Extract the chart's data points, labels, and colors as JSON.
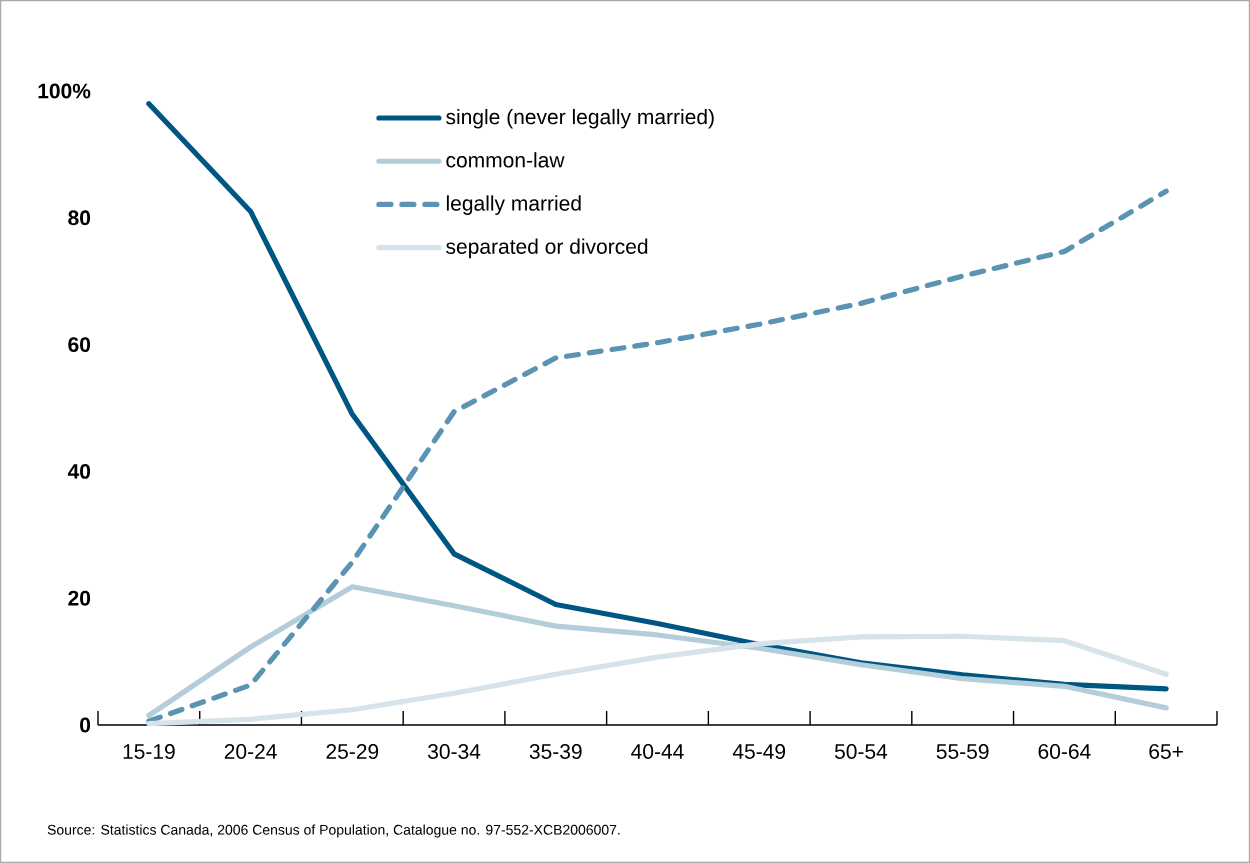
{
  "chart_data": {
    "type": "line",
    "categories": [
      "15-19",
      "20-24",
      "25-29",
      "30-34",
      "35-39",
      "40-44",
      "45-49",
      "50-54",
      "55-59",
      "60-64",
      "65+"
    ],
    "series": [
      {
        "name": "single (never legally married)",
        "color": "#005682",
        "line_style": "solid",
        "values": [
          98,
          81,
          49,
          27,
          19,
          16,
          12.7,
          9.8,
          7.9,
          6.4,
          5.7
        ]
      },
      {
        "name": "common-law",
        "color": "#b3cdd9",
        "line_style": "solid",
        "values": [
          1.5,
          12.3,
          21.8,
          18.8,
          15.6,
          14.2,
          12.1,
          9.5,
          7.3,
          6.1,
          2.7
        ]
      },
      {
        "name": "legally married",
        "color": "#5b93b3",
        "line_style": "dashed",
        "values": [
          0.6,
          6.3,
          25.7,
          49.4,
          57.9,
          60.3,
          63.2,
          66.5,
          70.8,
          74.7,
          84.2
        ]
      },
      {
        "name": "separated or divorced",
        "color": "#d6e3ea",
        "line_style": "solid",
        "values": [
          0.2,
          0.9,
          2.4,
          5,
          8,
          10.7,
          12.8,
          13.9,
          14,
          13.3,
          8
        ]
      }
    ],
    "ylim": [
      0,
      100
    ],
    "yticks": [
      0,
      20,
      40,
      60,
      80,
      {
        "value": 100,
        "label": "100%"
      }
    ],
    "grid": false,
    "legend": "top",
    "marker": "none",
    "annotations": [
      "Source: Statistics Canada, 2006 Census of Population, Catalogue no. 97-552-XCB2006007."
    ]
  }
}
